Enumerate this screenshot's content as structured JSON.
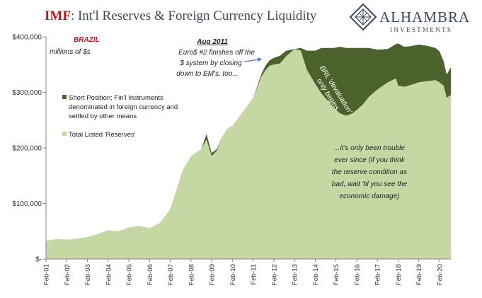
{
  "header": {
    "title_accent": "IMF",
    "title_rest": ": Int'l Reserves & Foreign Currency Liquidity",
    "brand_name": "ALHAMBRA",
    "brand_sub": "INVESTMENTS",
    "brand_icon": "diamond-lattice-logo"
  },
  "colors": {
    "reserves": "#c5d8a4",
    "short_position": "#4c622d",
    "accent": "#c0121c",
    "text": "#3b4a5a"
  },
  "chart_data": {
    "type": "area",
    "title": "",
    "subtitle": "BRAZIL",
    "unit_note": "millions of $s",
    "xlabel": "",
    "ylabel": "",
    "ylim": [
      0,
      400000
    ],
    "y_ticks": [
      {
        "value": 0,
        "label": "$-"
      },
      {
        "value": 100000,
        "label": "$100,000"
      },
      {
        "value": 200000,
        "label": "$200,000"
      },
      {
        "value": 300000,
        "label": "$300,000"
      },
      {
        "value": 400000,
        "label": "$400,000"
      }
    ],
    "x_ticks": [
      "Feb-01",
      "Feb-02",
      "Feb-03",
      "Feb-04",
      "Feb-05",
      "Feb-06",
      "Feb-07",
      "Feb-08",
      "Feb-09",
      "Feb-10",
      "Feb-11",
      "Feb-12",
      "Feb-13",
      "Feb-14",
      "Feb-15",
      "Feb-16",
      "Feb-17",
      "Feb-18",
      "Feb-19",
      "Feb-20"
    ],
    "xlim": [
      2001.0,
      2020.55
    ],
    "grid": false,
    "legend_position": "upper-left",
    "series": [
      {
        "name": "Total Listed 'Reserves'",
        "color": "#c5d8a4",
        "x": [
          2001.0,
          2001.5,
          2002.0,
          2002.5,
          2003.0,
          2003.5,
          2004.0,
          2004.5,
          2005.0,
          2005.5,
          2006.0,
          2006.5,
          2007.0,
          2007.3,
          2007.6,
          2008.0,
          2008.5,
          2008.75,
          2009.0,
          2009.25,
          2009.5,
          2009.75,
          2010.0,
          2010.5,
          2011.0,
          2011.4,
          2011.6,
          2011.8,
          2012.0,
          2012.3,
          2012.6,
          2013.0,
          2013.3,
          2013.6,
          2014.0,
          2014.3,
          2014.6,
          2014.9,
          2015.2,
          2015.5,
          2015.8,
          2016.0,
          2016.3,
          2016.6,
          2017.0,
          2017.5,
          2017.9,
          2018.0,
          2018.3,
          2018.6,
          2019.0,
          2019.4,
          2019.8,
          2020.0,
          2020.2,
          2020.35,
          2020.55
        ],
        "values": [
          33000,
          36000,
          35000,
          37000,
          40000,
          45000,
          52000,
          50000,
          57000,
          60000,
          56000,
          65000,
          90000,
          125000,
          160000,
          185000,
          198000,
          215000,
          185000,
          195000,
          220000,
          235000,
          240000,
          265000,
          290000,
          328000,
          340000,
          348000,
          350000,
          352000,
          365000,
          378000,
          375000,
          340000,
          315000,
          298000,
          285000,
          272000,
          262000,
          258000,
          262000,
          268000,
          278000,
          292000,
          305000,
          318000,
          325000,
          312000,
          310000,
          313000,
          318000,
          320000,
          322000,
          318000,
          312000,
          290000,
          295000
        ]
      },
      {
        "name": "Short Position; Fin'l Instruments denominated in foreign currency and settled by other means",
        "color": "#4c622d",
        "x": [
          2001.0,
          2007.0,
          2008.5,
          2008.75,
          2009.0,
          2009.5,
          2011.0,
          2011.4,
          2011.6,
          2011.8,
          2012.0,
          2012.3,
          2012.6,
          2013.0,
          2013.3,
          2013.6,
          2014.0,
          2014.3,
          2014.6,
          2014.9,
          2015.2,
          2015.5,
          2015.8,
          2016.0,
          2016.3,
          2016.6,
          2017.0,
          2017.5,
          2017.9,
          2018.0,
          2018.3,
          2018.6,
          2019.0,
          2019.4,
          2019.8,
          2020.0,
          2020.2,
          2020.35,
          2020.55
        ],
        "values": [
          0,
          0,
          0,
          10000,
          6000,
          0,
          0,
          5000,
          8000,
          10000,
          12000,
          14000,
          10000,
          0,
          5000,
          35000,
          60000,
          82000,
          95000,
          108000,
          120000,
          122000,
          118000,
          112000,
          102000,
          88000,
          72000,
          60000,
          62000,
          76000,
          72000,
          70000,
          68000,
          64000,
          58000,
          56000,
          44000,
          42000,
          50000
        ]
      }
    ],
    "annotations": [
      {
        "heading": "Aug 2011",
        "lines": [
          "Euro$ #2 finishes off the",
          "$ system by closing",
          "down to EM's, too..."
        ]
      },
      {
        "lines": [
          "BRL 'devaluation'",
          "only begins"
        ]
      },
      {
        "lines": [
          "...it's only been trouble",
          "ever since (if you think",
          "the reserve condition as",
          "bad, wait 'til you see the",
          "economic damage)"
        ]
      }
    ]
  }
}
